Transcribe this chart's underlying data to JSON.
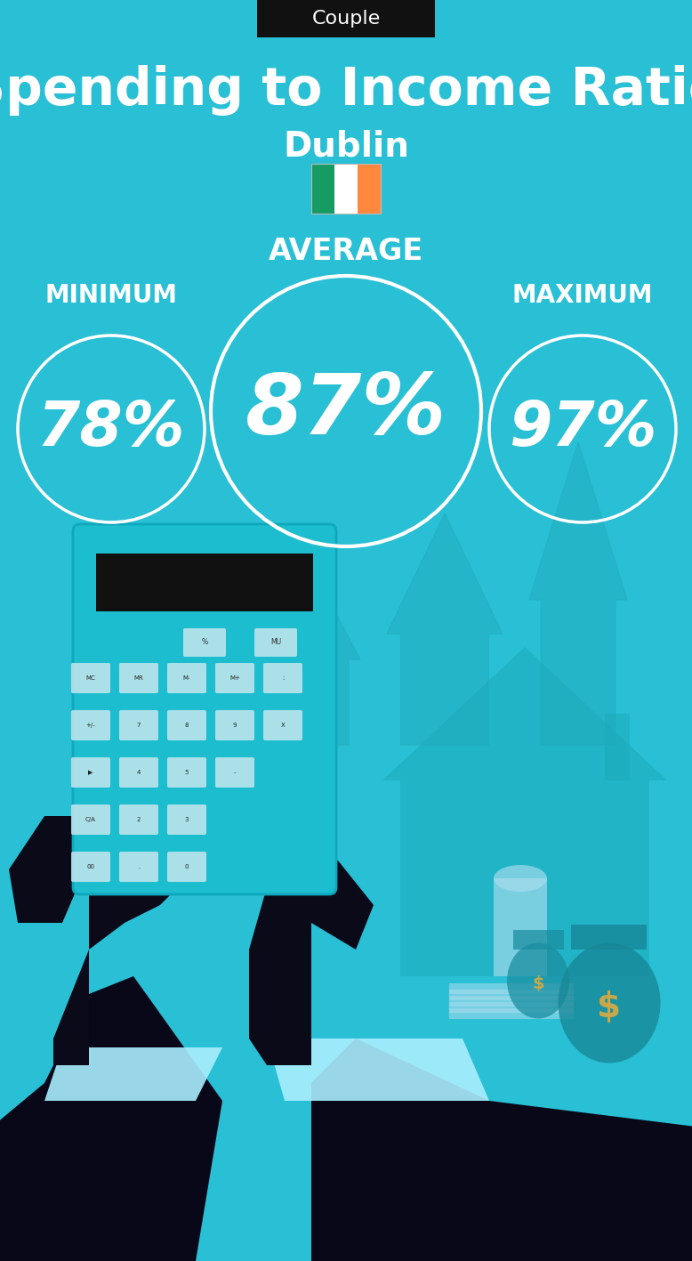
{
  "bg_color": "#29BFD4",
  "title_label": "Couple",
  "title_label_bg": "#111111",
  "title_label_color": "#ffffff",
  "main_title": "Spending to Income Ratio",
  "city": "Dublin",
  "flag_colors": [
    "#169B62",
    "#ffffff",
    "#FF883E"
  ],
  "avg_label": "AVERAGE",
  "min_label": "MINIMUM",
  "max_label": "MAXIMUM",
  "avg_value": "87%",
  "min_value": "78%",
  "max_value": "97%",
  "circle_color": "#ffffff",
  "text_color": "#ffffff",
  "avg_font_size": 68,
  "min_max_font_size": 50,
  "label_font_size": 20,
  "title_font_size": 42,
  "city_font_size": 28,
  "arrow_color": "#22AABC",
  "hand_color": "#0a0a18",
  "calc_body_color": "#1BBDCE",
  "calc_display_color": "#111111",
  "calc_btn_color": "#cce8ef",
  "house_color": "#1AAABB",
  "money_bag_color": "#1590A8",
  "dollar_color": "#C8A84B",
  "cuff_color": "#aaeeff",
  "sleeve_color": "#080818"
}
